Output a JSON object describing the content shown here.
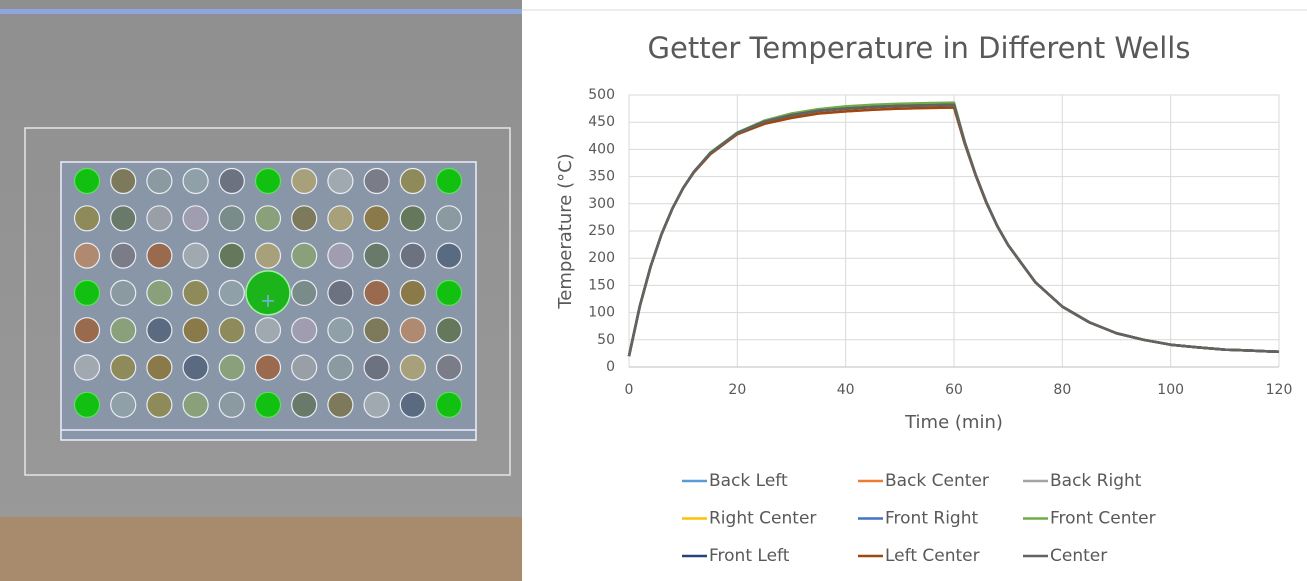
{
  "chart_data": {
    "type": "line",
    "title": "Getter Temperature in Different Wells",
    "x_label": "Time (min)",
    "y_label": "Temperature (°C)",
    "x": [
      0,
      2,
      4,
      6,
      8,
      10,
      12,
      15,
      20,
      25,
      30,
      35,
      40,
      45,
      50,
      55,
      60,
      62,
      64,
      66,
      68,
      70,
      75,
      80,
      85,
      90,
      95,
      100,
      105,
      110,
      115,
      120
    ],
    "series": [
      {
        "name": "Back Left",
        "color": "#5b9bd5",
        "values": [
          20,
          112,
          185,
          244,
          291,
          329,
          359,
          393,
          430,
          451,
          463,
          471,
          475,
          478,
          480,
          481,
          482,
          412,
          353,
          302,
          259,
          224,
          156,
          111,
          82,
          62,
          50,
          41,
          36,
          32,
          30,
          28
        ]
      },
      {
        "name": "Back Center",
        "color": "#ed7d31",
        "values": [
          20,
          112,
          185,
          244,
          291,
          329,
          358,
          391,
          428,
          447,
          458,
          466,
          470,
          473,
          475,
          476,
          477,
          410,
          352,
          301,
          259,
          224,
          156,
          111,
          82,
          62,
          50,
          41,
          36,
          32,
          30,
          28
        ]
      },
      {
        "name": "Back Right",
        "color": "#a5a5a5",
        "values": [
          20,
          112,
          185,
          244,
          291,
          329,
          359,
          393,
          430,
          451,
          463,
          471,
          475,
          478,
          480,
          481,
          482,
          412,
          353,
          302,
          259,
          224,
          156,
          111,
          82,
          62,
          50,
          41,
          36,
          32,
          30,
          28
        ]
      },
      {
        "name": "Right Center",
        "color": "#ffc000",
        "values": [
          20,
          112,
          185,
          244,
          291,
          329,
          359,
          393,
          430,
          451,
          463,
          471,
          475,
          478,
          480,
          481,
          482,
          412,
          353,
          302,
          259,
          224,
          156,
          111,
          82,
          62,
          50,
          41,
          36,
          32,
          30,
          28
        ]
      },
      {
        "name": "Front Right",
        "color": "#4472c4",
        "values": [
          20,
          112,
          185,
          244,
          291,
          329,
          359,
          393,
          430,
          451,
          463,
          471,
          475,
          478,
          480,
          481,
          482,
          412,
          353,
          302,
          259,
          224,
          156,
          111,
          82,
          62,
          50,
          41,
          36,
          32,
          30,
          28
        ]
      },
      {
        "name": "Front Center",
        "color": "#70ad47",
        "values": [
          20,
          112,
          185,
          244,
          291,
          329,
          359,
          394,
          431,
          453,
          466,
          474,
          479,
          482,
          484,
          485,
          486,
          414,
          354,
          303,
          259,
          224,
          156,
          111,
          82,
          62,
          50,
          41,
          36,
          32,
          30,
          28
        ]
      },
      {
        "name": "Front Left",
        "color": "#264478",
        "values": [
          20,
          112,
          185,
          244,
          291,
          329,
          359,
          393,
          430,
          451,
          463,
          471,
          475,
          478,
          480,
          481,
          482,
          412,
          353,
          302,
          259,
          224,
          156,
          111,
          82,
          62,
          50,
          41,
          36,
          32,
          30,
          28
        ]
      },
      {
        "name": "Left Center",
        "color": "#9e480e",
        "values": [
          20,
          112,
          185,
          244,
          291,
          329,
          358,
          391,
          428,
          447,
          458,
          466,
          470,
          473,
          475,
          476,
          477,
          410,
          352,
          301,
          259,
          224,
          156,
          111,
          82,
          62,
          50,
          41,
          36,
          32,
          30,
          28
        ]
      },
      {
        "name": "Center",
        "color": "#636363",
        "values": [
          20,
          112,
          185,
          244,
          291,
          329,
          359,
          393,
          430,
          451,
          463,
          471,
          475,
          478,
          480,
          481,
          482,
          412,
          353,
          302,
          259,
          224,
          156,
          111,
          82,
          62,
          50,
          41,
          36,
          32,
          30,
          28
        ]
      }
    ],
    "xlim": [
      0,
      120
    ],
    "xticks": [
      0,
      20,
      40,
      60,
      80,
      100,
      120
    ],
    "ylim": [
      0,
      500
    ],
    "yticks": [
      0,
      50,
      100,
      150,
      200,
      250,
      300,
      350,
      400,
      450,
      500
    ],
    "grid": true,
    "legend": "bottom"
  }
}
